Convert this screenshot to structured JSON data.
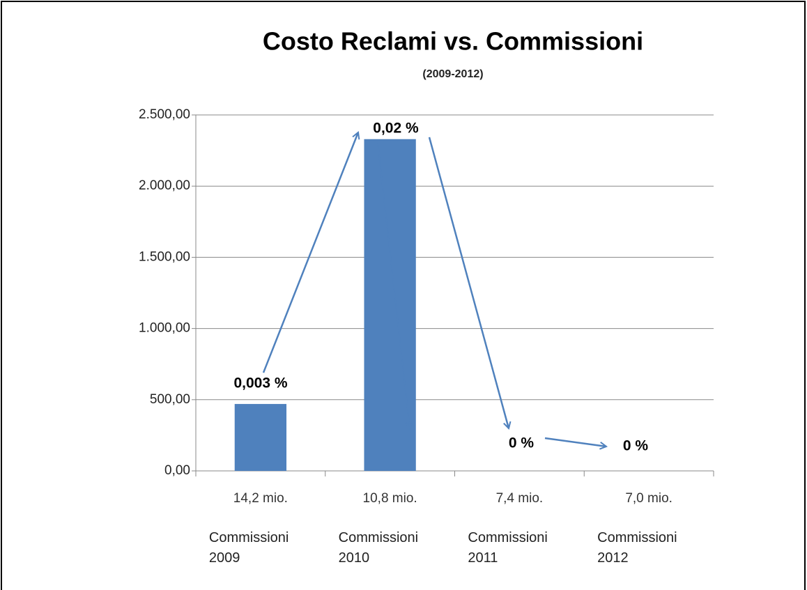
{
  "chart_data": {
    "type": "bar",
    "title": "Costo Reclami vs. Commissioni",
    "subtitle": "(2009-2012)",
    "categories": [
      "Commissioni 2009",
      "Commissioni 2010",
      "Commissioni 2011",
      "Commissioni 2012"
    ],
    "commission_labels": [
      "14,2 mio.",
      "10,8 mio.",
      "7,4 mio.",
      "7,0 mio."
    ],
    "values": [
      470,
      2330,
      0,
      0
    ],
    "annotations": [
      "0,003 %",
      "0,02 %",
      "0 %",
      "0 %"
    ],
    "color": "#4f81bd",
    "ylim": [
      0,
      2500
    ],
    "yticks": [
      {
        "value": 0,
        "label": "0,00"
      },
      {
        "value": 500,
        "label": "500,00"
      },
      {
        "value": 1000,
        "label": "1.000,00"
      },
      {
        "value": 1500,
        "label": "1.500,00"
      },
      {
        "value": 2000,
        "label": "2.000,00"
      },
      {
        "value": 2500,
        "label": "2.500,00"
      }
    ],
    "grid": true
  }
}
